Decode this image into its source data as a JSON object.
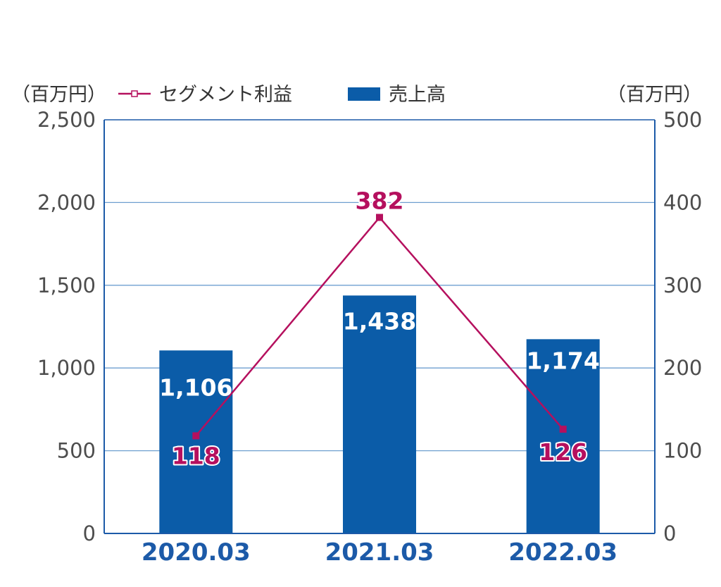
{
  "chart_data": {
    "type": "bar",
    "units": {
      "left": "（百万円）",
      "right": "（百万円）"
    },
    "legend": {
      "position": "top"
    },
    "categories": [
      "2020.03",
      "2021.03",
      "2022.03"
    ],
    "series": [
      {
        "name": "売上高",
        "kind": "bar",
        "axis": "left",
        "values": [
          1106,
          1438,
          1174
        ],
        "labels": [
          "1,106",
          "1,438",
          "1,174"
        ]
      },
      {
        "name": "セグメント利益",
        "kind": "line",
        "axis": "right",
        "values": [
          118,
          382,
          126
        ],
        "labels": [
          "118",
          "382",
          "126"
        ]
      }
    ],
    "y_left": {
      "min": 0,
      "max": 2500,
      "ticks": [
        0,
        500,
        1000,
        1500,
        2000,
        2500
      ],
      "tick_labels": [
        "0",
        "500",
        "1,000",
        "1,500",
        "2,000",
        "2,500"
      ]
    },
    "y_right": {
      "min": 0,
      "max": 500,
      "ticks": [
        0,
        100,
        200,
        300,
        400,
        500
      ],
      "tick_labels": [
        "0",
        "100",
        "200",
        "300",
        "400",
        "500"
      ]
    },
    "grid": true,
    "colors": {
      "bar": "#0b5ca8",
      "line": "#b5105e",
      "axis": "#1c5aa8",
      "grid": "#6f9fd0",
      "xtick": "#1c5aa8"
    }
  }
}
